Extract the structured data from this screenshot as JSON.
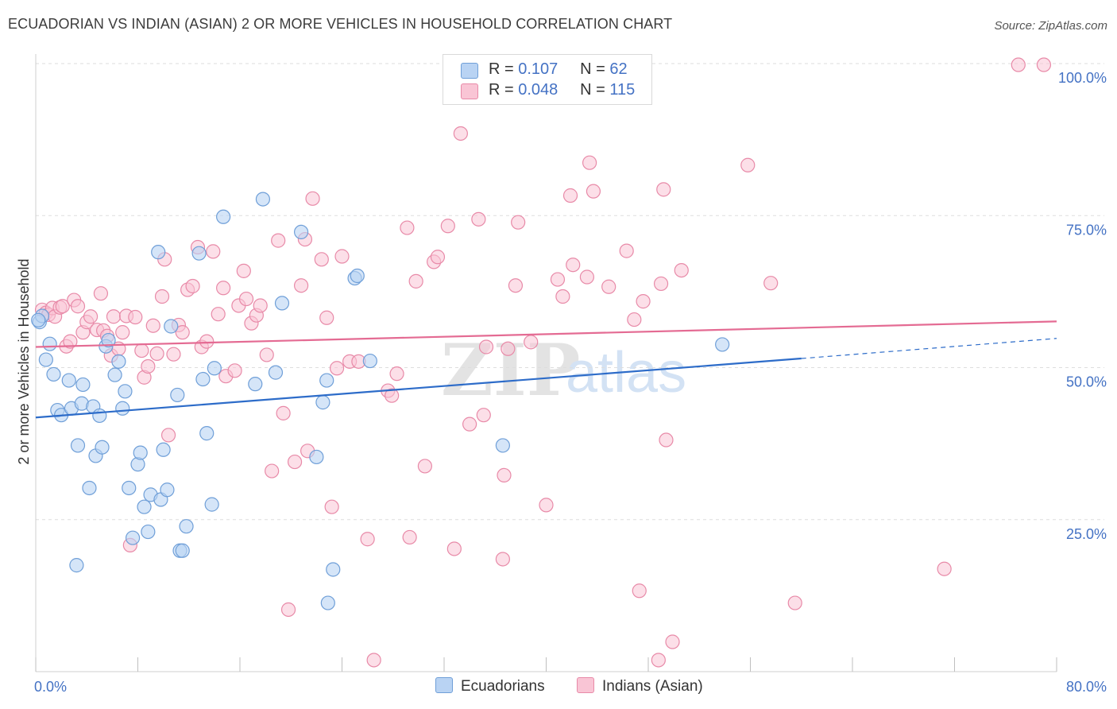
{
  "title": "ECUADORIAN VS INDIAN (ASIAN) 2 OR MORE VEHICLES IN HOUSEHOLD CORRELATION CHART",
  "source": "Source: ZipAtlas.com",
  "watermark": {
    "zip": "ZIP",
    "atlas": "atlas"
  },
  "colors": {
    "ecuadorian_fill": "#b9d3f3",
    "ecuadorian_stroke": "#6f9fd8",
    "ecuadorian_line": "#2d6cc9",
    "indian_fill": "#f9c5d5",
    "indian_stroke": "#e88aa8",
    "indian_line": "#e46b93",
    "tick_text": "#4472c4",
    "grid": "#dddddd"
  },
  "legend": {
    "rows": [
      {
        "r_label": "R = ",
        "r_value": "0.107",
        "n_label": "N = ",
        "n_value": "62"
      },
      {
        "r_label": "R = ",
        "r_value": "0.048",
        "n_label": "N = ",
        "n_value": "115"
      }
    ]
  },
  "bottom_legend": {
    "series1": "Ecuadorians",
    "series2": "Indians (Asian)"
  },
  "chart_data": {
    "type": "scatter",
    "title": "ECUADORIAN VS INDIAN (ASIAN) 2 OR MORE VEHICLES IN HOUSEHOLD CORRELATION CHART",
    "xlabel": "",
    "ylabel": "2 or more Vehicles in Household",
    "xlim": [
      0,
      80
    ],
    "ylim": [
      0,
      100
    ],
    "x_tick_labels": [
      "0.0%",
      "80.0%"
    ],
    "y_ticks": [
      25,
      50,
      75,
      100
    ],
    "y_tick_labels": [
      "25.0%",
      "50.0%",
      "75.0%",
      "100.0%"
    ],
    "grid": true,
    "legend_position": "top-center",
    "series": [
      {
        "name": "Ecuadorians",
        "R": 0.107,
        "N": 62,
        "trend": {
          "x_start": 0,
          "y_start": 41.8,
          "x_solid_end": 60,
          "y_solid_end": 51.5,
          "x_dash_end": 80,
          "y_dash_end": 54.8
        },
        "points": [
          [
            0.3,
            57.5
          ],
          [
            0.5,
            58.5
          ],
          [
            0.8,
            51.3
          ],
          [
            1.1,
            53.9
          ],
          [
            1.4,
            48.9
          ],
          [
            1.7,
            43.0
          ],
          [
            2.0,
            42.2
          ],
          [
            2.6,
            47.9
          ],
          [
            2.8,
            43.3
          ],
          [
            3.2,
            17.5
          ],
          [
            3.3,
            37.2
          ],
          [
            3.6,
            44.1
          ],
          [
            3.7,
            47.2
          ],
          [
            4.2,
            30.2
          ],
          [
            4.5,
            43.6
          ],
          [
            4.7,
            35.5
          ],
          [
            5.0,
            42.1
          ],
          [
            5.2,
            36.9
          ],
          [
            5.5,
            53.5
          ],
          [
            5.7,
            54.5
          ],
          [
            6.2,
            48.8
          ],
          [
            6.5,
            51.0
          ],
          [
            6.8,
            43.3
          ],
          [
            7.0,
            46.1
          ],
          [
            7.3,
            30.2
          ],
          [
            7.6,
            22.0
          ],
          [
            8.0,
            34.1
          ],
          [
            8.2,
            36.0
          ],
          [
            8.5,
            27.1
          ],
          [
            8.8,
            23.0
          ],
          [
            9.0,
            29.1
          ],
          [
            9.6,
            69.0
          ],
          [
            9.8,
            28.3
          ],
          [
            10.0,
            36.5
          ],
          [
            10.3,
            29.9
          ],
          [
            10.6,
            56.8
          ],
          [
            11.1,
            45.5
          ],
          [
            11.3,
            19.9
          ],
          [
            11.5,
            19.9
          ],
          [
            11.8,
            23.9
          ],
          [
            12.8,
            68.8
          ],
          [
            13.1,
            48.1
          ],
          [
            13.4,
            39.2
          ],
          [
            13.8,
            27.5
          ],
          [
            14.0,
            49.9
          ],
          [
            14.7,
            74.8
          ],
          [
            17.2,
            47.3
          ],
          [
            17.8,
            77.7
          ],
          [
            18.8,
            49.2
          ],
          [
            19.3,
            60.6
          ],
          [
            20.8,
            72.3
          ],
          [
            22.0,
            35.3
          ],
          [
            22.8,
            47.9
          ],
          [
            22.5,
            44.3
          ],
          [
            22.9,
            11.3
          ],
          [
            23.3,
            16.8
          ],
          [
            25.0,
            64.7
          ],
          [
            26.2,
            51.1
          ],
          [
            25.2,
            65.1
          ],
          [
            36.6,
            37.2
          ],
          [
            53.8,
            53.8
          ],
          [
            0.2,
            57.8
          ]
        ]
      },
      {
        "name": "Indians (Asian)",
        "R": 0.048,
        "N": 115,
        "trend": {
          "x_start": 0,
          "y_start": 53.4,
          "x_end": 80,
          "y_end": 57.6
        },
        "points": [
          [
            0.5,
            59.5
          ],
          [
            0.8,
            59.0
          ],
          [
            1.0,
            58.7
          ],
          [
            1.3,
            59.8
          ],
          [
            1.5,
            58.4
          ],
          [
            1.9,
            59.9
          ],
          [
            2.1,
            60.1
          ],
          [
            2.4,
            53.5
          ],
          [
            2.7,
            54.3
          ],
          [
            3.0,
            61.1
          ],
          [
            3.3,
            60.1
          ],
          [
            3.7,
            55.8
          ],
          [
            4.0,
            57.5
          ],
          [
            4.3,
            58.4
          ],
          [
            4.8,
            56.2
          ],
          [
            5.1,
            62.2
          ],
          [
            5.3,
            56.1
          ],
          [
            5.6,
            55.2
          ],
          [
            5.9,
            52.0
          ],
          [
            6.1,
            58.4
          ],
          [
            6.5,
            53.1
          ],
          [
            6.8,
            55.8
          ],
          [
            7.1,
            58.5
          ],
          [
            7.4,
            20.8
          ],
          [
            7.8,
            58.3
          ],
          [
            8.3,
            52.8
          ],
          [
            8.5,
            48.4
          ],
          [
            8.8,
            50.2
          ],
          [
            9.2,
            56.9
          ],
          [
            9.5,
            52.3
          ],
          [
            9.9,
            61.7
          ],
          [
            10.1,
            67.8
          ],
          [
            10.4,
            38.9
          ],
          [
            10.8,
            52.2
          ],
          [
            11.2,
            57.0
          ],
          [
            11.5,
            55.8
          ],
          [
            11.9,
            62.8
          ],
          [
            12.3,
            63.4
          ],
          [
            12.7,
            69.8
          ],
          [
            13.0,
            53.4
          ],
          [
            13.4,
            54.3
          ],
          [
            13.9,
            69.1
          ],
          [
            14.3,
            58.8
          ],
          [
            14.7,
            63.1
          ],
          [
            14.9,
            48.6
          ],
          [
            15.6,
            49.5
          ],
          [
            15.9,
            60.2
          ],
          [
            16.3,
            65.9
          ],
          [
            16.5,
            61.3
          ],
          [
            16.9,
            57.3
          ],
          [
            17.3,
            58.6
          ],
          [
            17.6,
            60.2
          ],
          [
            18.1,
            52.1
          ],
          [
            18.5,
            33.0
          ],
          [
            19.0,
            70.9
          ],
          [
            19.4,
            42.5
          ],
          [
            19.8,
            10.2
          ],
          [
            20.3,
            34.5
          ],
          [
            20.8,
            63.5
          ],
          [
            21.1,
            71.1
          ],
          [
            21.3,
            36.3
          ],
          [
            21.7,
            77.8
          ],
          [
            22.4,
            67.8
          ],
          [
            22.8,
            58.2
          ],
          [
            23.2,
            27.1
          ],
          [
            23.6,
            49.9
          ],
          [
            24.0,
            68.3
          ],
          [
            24.6,
            51.0
          ],
          [
            25.3,
            51.0
          ],
          [
            26.0,
            21.8
          ],
          [
            26.5,
            1.9
          ],
          [
            27.6,
            46.2
          ],
          [
            27.9,
            45.4
          ],
          [
            28.3,
            49.0
          ],
          [
            29.1,
            73.0
          ],
          [
            29.3,
            22.1
          ],
          [
            29.8,
            64.2
          ],
          [
            30.5,
            33.8
          ],
          [
            31.2,
            67.4
          ],
          [
            31.5,
            68.2
          ],
          [
            32.3,
            73.3
          ],
          [
            32.8,
            20.2
          ],
          [
            33.3,
            88.5
          ],
          [
            34.0,
            40.7
          ],
          [
            34.7,
            74.4
          ],
          [
            35.1,
            42.2
          ],
          [
            35.3,
            53.4
          ],
          [
            36.7,
            32.3
          ],
          [
            36.6,
            18.5
          ],
          [
            37.0,
            53.1
          ],
          [
            37.6,
            63.5
          ],
          [
            37.8,
            73.9
          ],
          [
            38.8,
            54.2
          ],
          [
            40.0,
            27.4
          ],
          [
            40.9,
            64.5
          ],
          [
            41.3,
            61.7
          ],
          [
            41.9,
            78.3
          ],
          [
            42.1,
            66.9
          ],
          [
            43.2,
            64.9
          ],
          [
            43.4,
            83.7
          ],
          [
            43.7,
            79.0
          ],
          [
            44.9,
            63.3
          ],
          [
            46.3,
            69.2
          ],
          [
            46.9,
            57.9
          ],
          [
            47.3,
            13.3
          ],
          [
            47.6,
            60.9
          ],
          [
            48.8,
            1.9
          ],
          [
            49.0,
            63.8
          ],
          [
            49.2,
            79.3
          ],
          [
            49.4,
            38.1
          ],
          [
            49.9,
            4.9
          ],
          [
            50.6,
            66.0
          ],
          [
            55.8,
            83.3
          ],
          [
            57.6,
            63.9
          ],
          [
            59.5,
            11.3
          ],
          [
            71.2,
            16.9
          ],
          [
            77.0,
            99.8
          ],
          [
            79.0,
            99.8
          ]
        ]
      }
    ]
  }
}
